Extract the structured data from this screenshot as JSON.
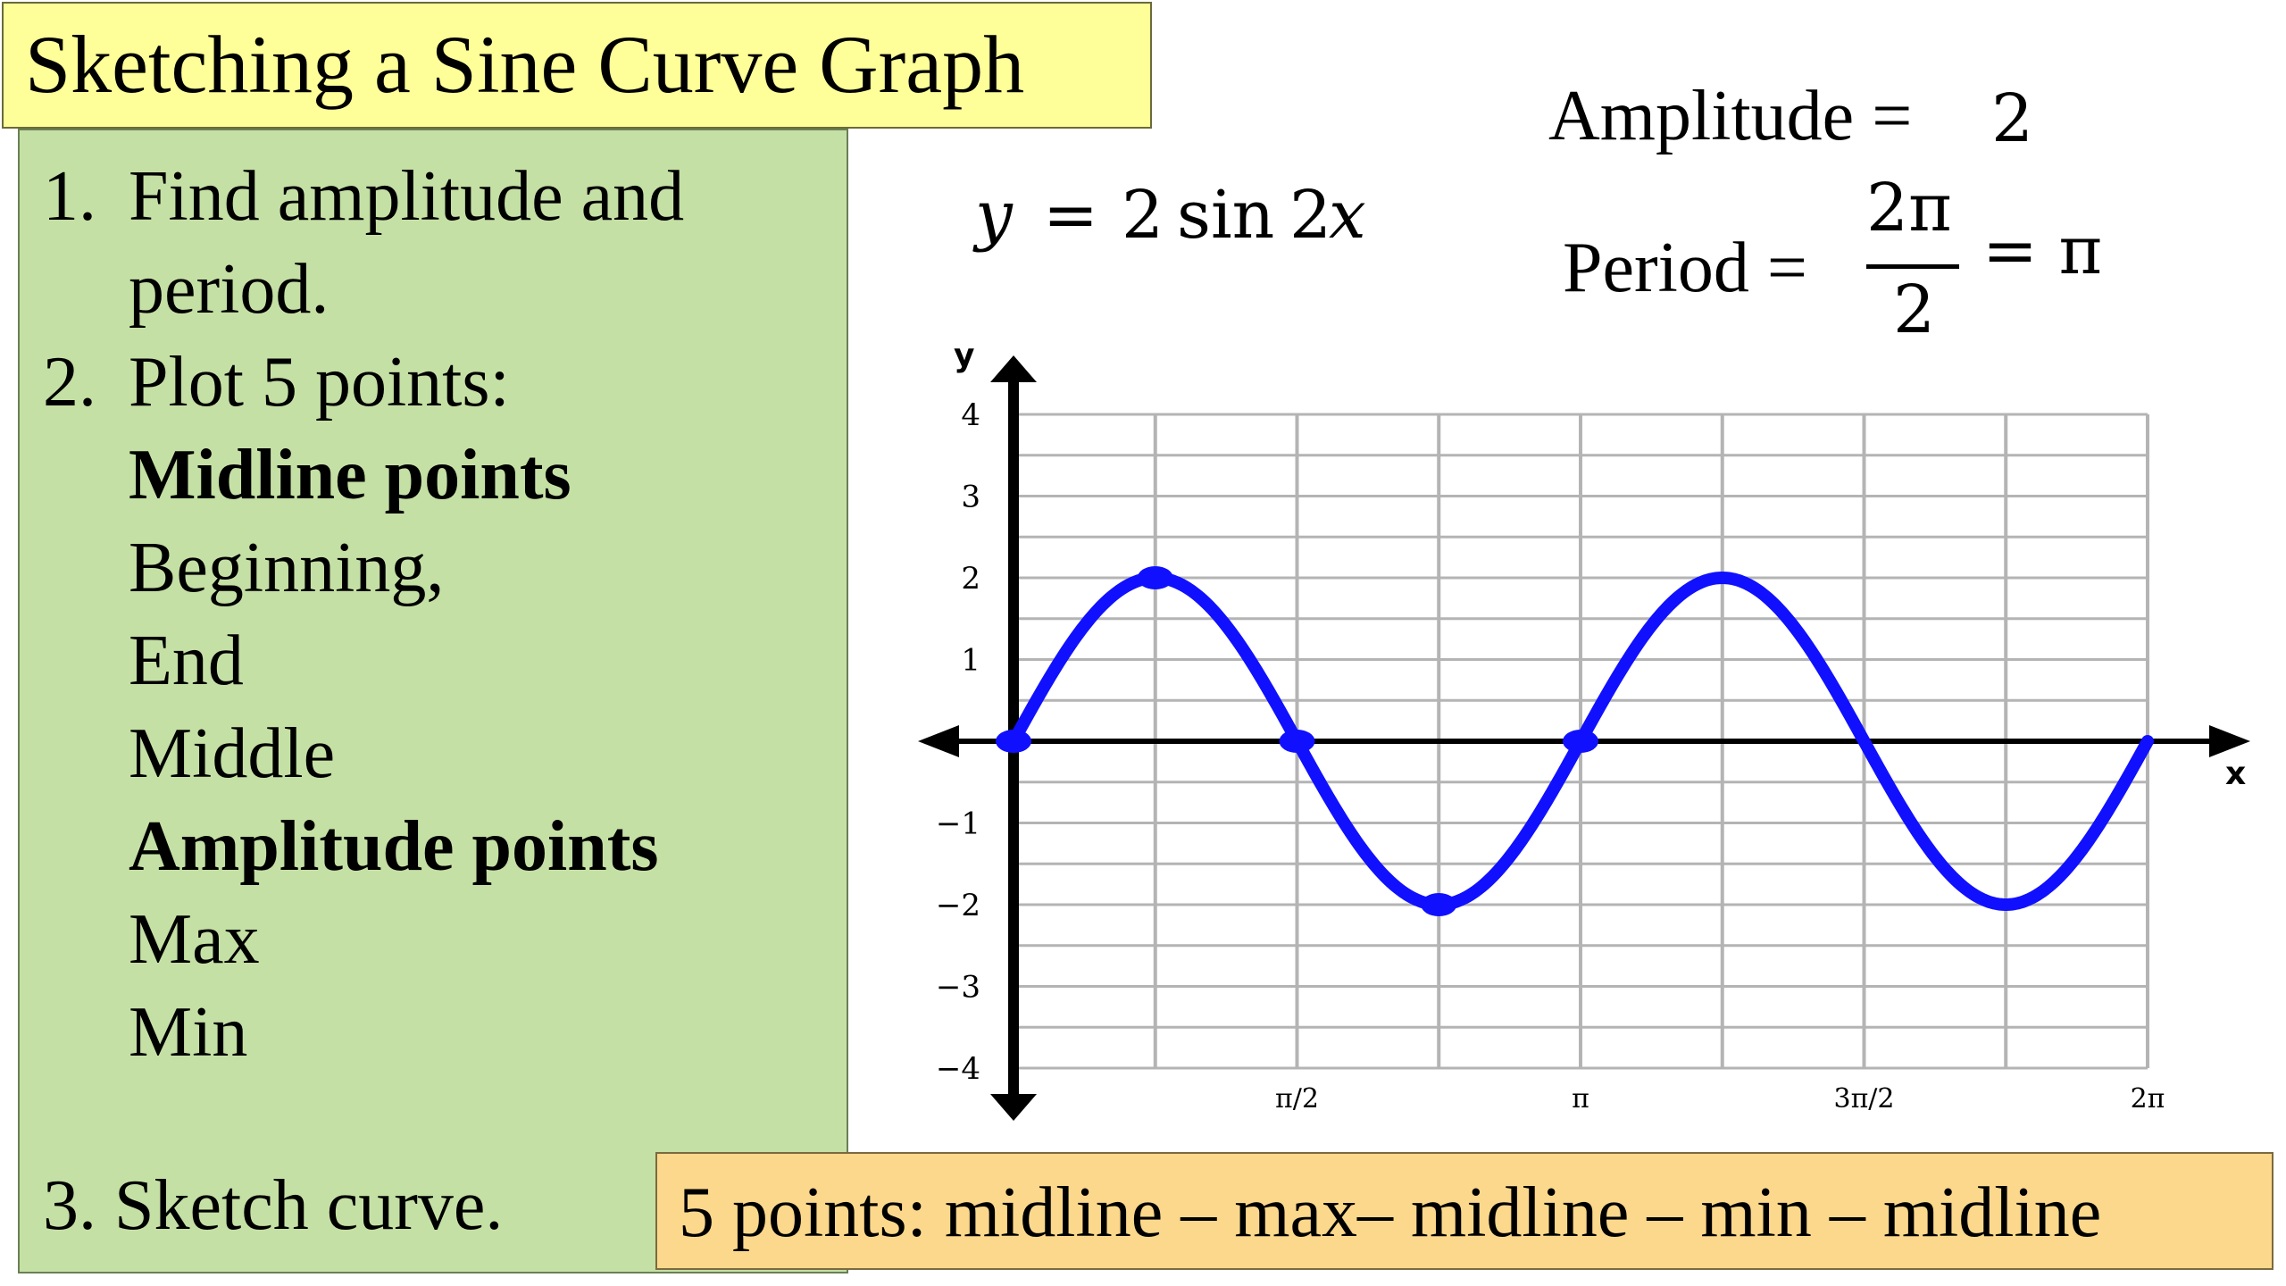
{
  "title": "Sketching a Sine Curve Graph",
  "steps": {
    "step1_num": "1.",
    "step1_line1": "Find amplitude and",
    "step1_line2": "period.",
    "step2_num": "2.",
    "step2_line1": "Plot 5 points:",
    "midline_heading": "Midline points",
    "midline_items": [
      "Beginning,",
      "End",
      "Middle"
    ],
    "amplitude_heading": "Amplitude points",
    "amplitude_items": [
      "Max",
      "Min"
    ],
    "step3": "3. Sketch curve."
  },
  "equation": {
    "y": "y",
    "eq": "=",
    "rhs_num": "2",
    "rhs_func": "sin",
    "rhs_coef": "2",
    "rhs_var": "x"
  },
  "amplitude": {
    "label": "Amplitude =",
    "value": "2"
  },
  "period": {
    "label": "Period =",
    "numerator": "2π",
    "denominator": "2",
    "result": "= π"
  },
  "summary": "5 points: midline – max– midline – min – midline",
  "colors": {
    "title_bg": "#ffff99",
    "steps_bg": "#c5e0a5",
    "summary_bg": "#fbd88b",
    "curve": "#1010ff",
    "grid": "#b4b4b4",
    "axis": "#000000"
  },
  "chart_data": {
    "type": "line",
    "function": "y = 2 sin 2x",
    "amplitude": 2,
    "period": 3.14159,
    "xlim": [
      0,
      6.28318
    ],
    "ylim": [
      -4,
      4
    ],
    "x_axis_label": "x",
    "y_axis_label": "y",
    "y_ticks": [
      4,
      3,
      2,
      1,
      -1,
      -2,
      -3,
      -4
    ],
    "y_tick_labels": [
      "4",
      "3",
      "2",
      "1",
      "−1",
      "−2",
      "−3",
      "−4"
    ],
    "x_ticks": [
      1.5708,
      3.14159,
      4.71239,
      6.28318
    ],
    "x_tick_labels": [
      "π/2",
      "π",
      "3π/2",
      "2π"
    ],
    "grid": true,
    "key_points": [
      {
        "x": 0,
        "y": 0
      },
      {
        "x": 0.7854,
        "y": 2
      },
      {
        "x": 1.5708,
        "y": 0
      },
      {
        "x": 2.3562,
        "y": -2
      },
      {
        "x": 3.14159,
        "y": 0
      }
    ]
  }
}
